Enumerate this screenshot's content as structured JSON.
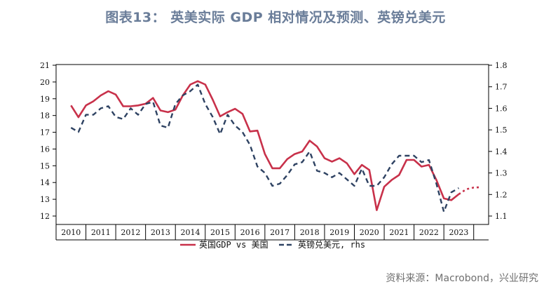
{
  "title": "图表13： 英美实际 GDP 相对情况及预测、英镑兑美元",
  "source": "资料来源：Macrobond，兴业研究",
  "chart_data": {
    "type": "line",
    "title": "图表13： 英美实际 GDP 相对情况及预测、英镑兑美元",
    "x_ticks": [
      "2010",
      "2011",
      "2012",
      "2013",
      "2014",
      "2015",
      "2016",
      "2017",
      "2018",
      "2019",
      "2020",
      "2021",
      "2022",
      "2023"
    ],
    "y_left": {
      "min": 12,
      "max": 21,
      "ticks": [
        12,
        13,
        14,
        15,
        16,
        17,
        18,
        19,
        20,
        21
      ]
    },
    "y_right": {
      "min": 1.1,
      "max": 1.8,
      "ticks": [
        "1.1",
        "1.2",
        "1.3",
        "1.4",
        "1.5",
        "1.6",
        "1.7",
        "1.8"
      ]
    },
    "legend_placement": "bottom",
    "series": [
      {
        "name": "英国GDP vs 美国",
        "axis": "left",
        "color": "#c8314a",
        "style": "solid",
        "x": [
          2010.0,
          2010.25,
          2010.5,
          2010.75,
          2011.0,
          2011.25,
          2011.5,
          2011.75,
          2012.0,
          2012.25,
          2012.5,
          2012.75,
          2013.0,
          2013.25,
          2013.5,
          2013.75,
          2014.0,
          2014.25,
          2014.5,
          2014.75,
          2015.0,
          2015.25,
          2015.5,
          2015.75,
          2016.0,
          2016.25,
          2016.5,
          2016.75,
          2017.0,
          2017.25,
          2017.5,
          2017.75,
          2018.0,
          2018.25,
          2018.5,
          2018.75,
          2019.0,
          2019.25,
          2019.5,
          2019.75,
          2020.0,
          2020.25,
          2020.5,
          2020.75,
          2021.0,
          2021.25,
          2021.5,
          2021.75,
          2022.0,
          2022.25,
          2022.5,
          2022.75,
          2023.0
        ],
        "values": [
          18.6,
          17.9,
          18.6,
          18.85,
          19.2,
          19.45,
          19.25,
          18.55,
          18.55,
          18.6,
          18.7,
          19.05,
          18.3,
          18.2,
          18.35,
          19.2,
          19.85,
          20.05,
          19.85,
          18.95,
          17.95,
          18.2,
          18.4,
          18.1,
          17.05,
          17.1,
          15.7,
          14.85,
          14.85,
          15.4,
          15.7,
          15.85,
          16.5,
          16.15,
          15.45,
          15.25,
          15.45,
          15.15,
          14.5,
          15.05,
          14.75,
          12.35,
          13.75,
          14.15,
          14.45,
          15.35,
          15.35,
          14.95,
          15.05,
          14.15,
          13.05,
          12.95,
          13.3
        ]
      },
      {
        "name": "英国GDP vs 美国 预测",
        "axis": "left",
        "color": "#c8314a",
        "style": "dotted",
        "x": [
          2023.0,
          2023.25,
          2023.5,
          2023.75
        ],
        "values": [
          13.3,
          13.6,
          13.7,
          13.72
        ]
      },
      {
        "name": "英镑兑美元, rhs",
        "axis": "right",
        "color": "#2e4262",
        "style": "dashed",
        "x": [
          2010.0,
          2010.25,
          2010.5,
          2010.75,
          2011.0,
          2011.25,
          2011.5,
          2011.75,
          2012.0,
          2012.25,
          2012.5,
          2012.75,
          2013.0,
          2013.25,
          2013.5,
          2013.75,
          2014.0,
          2014.25,
          2014.5,
          2014.75,
          2015.0,
          2015.25,
          2015.5,
          2015.75,
          2016.0,
          2016.25,
          2016.5,
          2016.75,
          2017.0,
          2017.25,
          2017.5,
          2017.75,
          2018.0,
          2018.25,
          2018.5,
          2018.75,
          2019.0,
          2019.25,
          2019.5,
          2019.75,
          2020.0,
          2020.25,
          2020.5,
          2020.75,
          2021.0,
          2021.25,
          2021.5,
          2021.75,
          2022.0,
          2022.25,
          2022.5,
          2022.75,
          2023.0
        ],
        "values": [
          1.51,
          1.49,
          1.57,
          1.57,
          1.6,
          1.61,
          1.56,
          1.55,
          1.6,
          1.57,
          1.62,
          1.63,
          1.52,
          1.51,
          1.62,
          1.66,
          1.68,
          1.71,
          1.62,
          1.56,
          1.48,
          1.57,
          1.52,
          1.49,
          1.43,
          1.33,
          1.3,
          1.24,
          1.25,
          1.29,
          1.34,
          1.35,
          1.4,
          1.31,
          1.3,
          1.28,
          1.3,
          1.27,
          1.24,
          1.32,
          1.24,
          1.24,
          1.28,
          1.34,
          1.38,
          1.38,
          1.38,
          1.35,
          1.36,
          1.25,
          1.12,
          1.21,
          1.23
        ]
      }
    ],
    "legend": [
      {
        "label": "英国GDP vs 美国",
        "style": "solid",
        "color": "#c8314a"
      },
      {
        "label": "英镑兑美元, rhs",
        "style": "dashed",
        "color": "#2e4262"
      }
    ]
  }
}
